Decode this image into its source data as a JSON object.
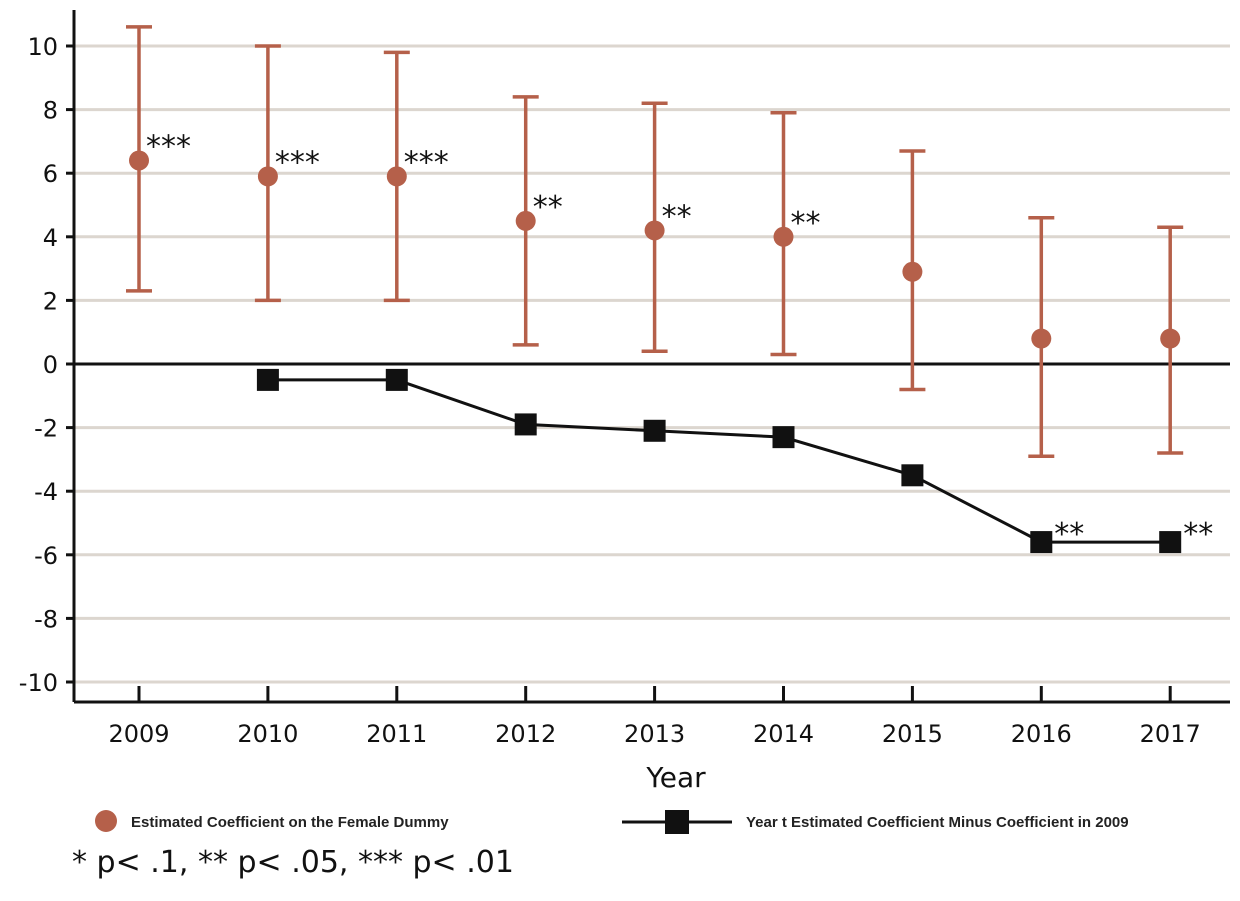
{
  "chart_data": {
    "type": "line",
    "x": [
      "2009",
      "2010",
      "2011",
      "2012",
      "2013",
      "2014",
      "2015",
      "2016",
      "2017"
    ],
    "xlabel": "Year",
    "ylabel": "",
    "ylim": [
      -10,
      10
    ],
    "yticks": [
      "10",
      "8",
      "6",
      "4",
      "2",
      "0",
      "-2",
      "-4",
      "-6",
      "-8",
      "-10"
    ],
    "grid": true,
    "legend_placement": "bottom",
    "series": [
      {
        "name": "Estimated Coefficient on the Female Dummy",
        "marker": "circle",
        "color": "#b5604a",
        "values": [
          6.4,
          5.9,
          5.9,
          4.5,
          4.2,
          4.0,
          2.9,
          0.8,
          0.8
        ],
        "ci_low": [
          2.3,
          2.0,
          2.0,
          0.6,
          0.4,
          0.3,
          -0.8,
          -2.9,
          -2.8
        ],
        "ci_high": [
          10.6,
          10.0,
          9.8,
          8.4,
          8.2,
          7.9,
          6.7,
          4.6,
          4.3
        ],
        "significance": [
          "***",
          "***",
          "***",
          "**",
          "**",
          "**",
          "",
          "",
          ""
        ]
      },
      {
        "name": "Year t Estimated Coefficient Minus Coefficient in 2009",
        "marker": "square",
        "color": "#111111",
        "x": [
          "2010",
          "2011",
          "2012",
          "2013",
          "2014",
          "2015",
          "2016",
          "2017"
        ],
        "values": [
          -0.5,
          -0.5,
          -1.9,
          -2.1,
          -2.3,
          -3.5,
          -5.6,
          -5.6
        ],
        "significance": [
          "",
          "",
          "",
          "",
          "",
          "",
          "**",
          "**"
        ]
      }
    ],
    "footnote": "* p< .1, ** p< .05, *** p< .01"
  }
}
